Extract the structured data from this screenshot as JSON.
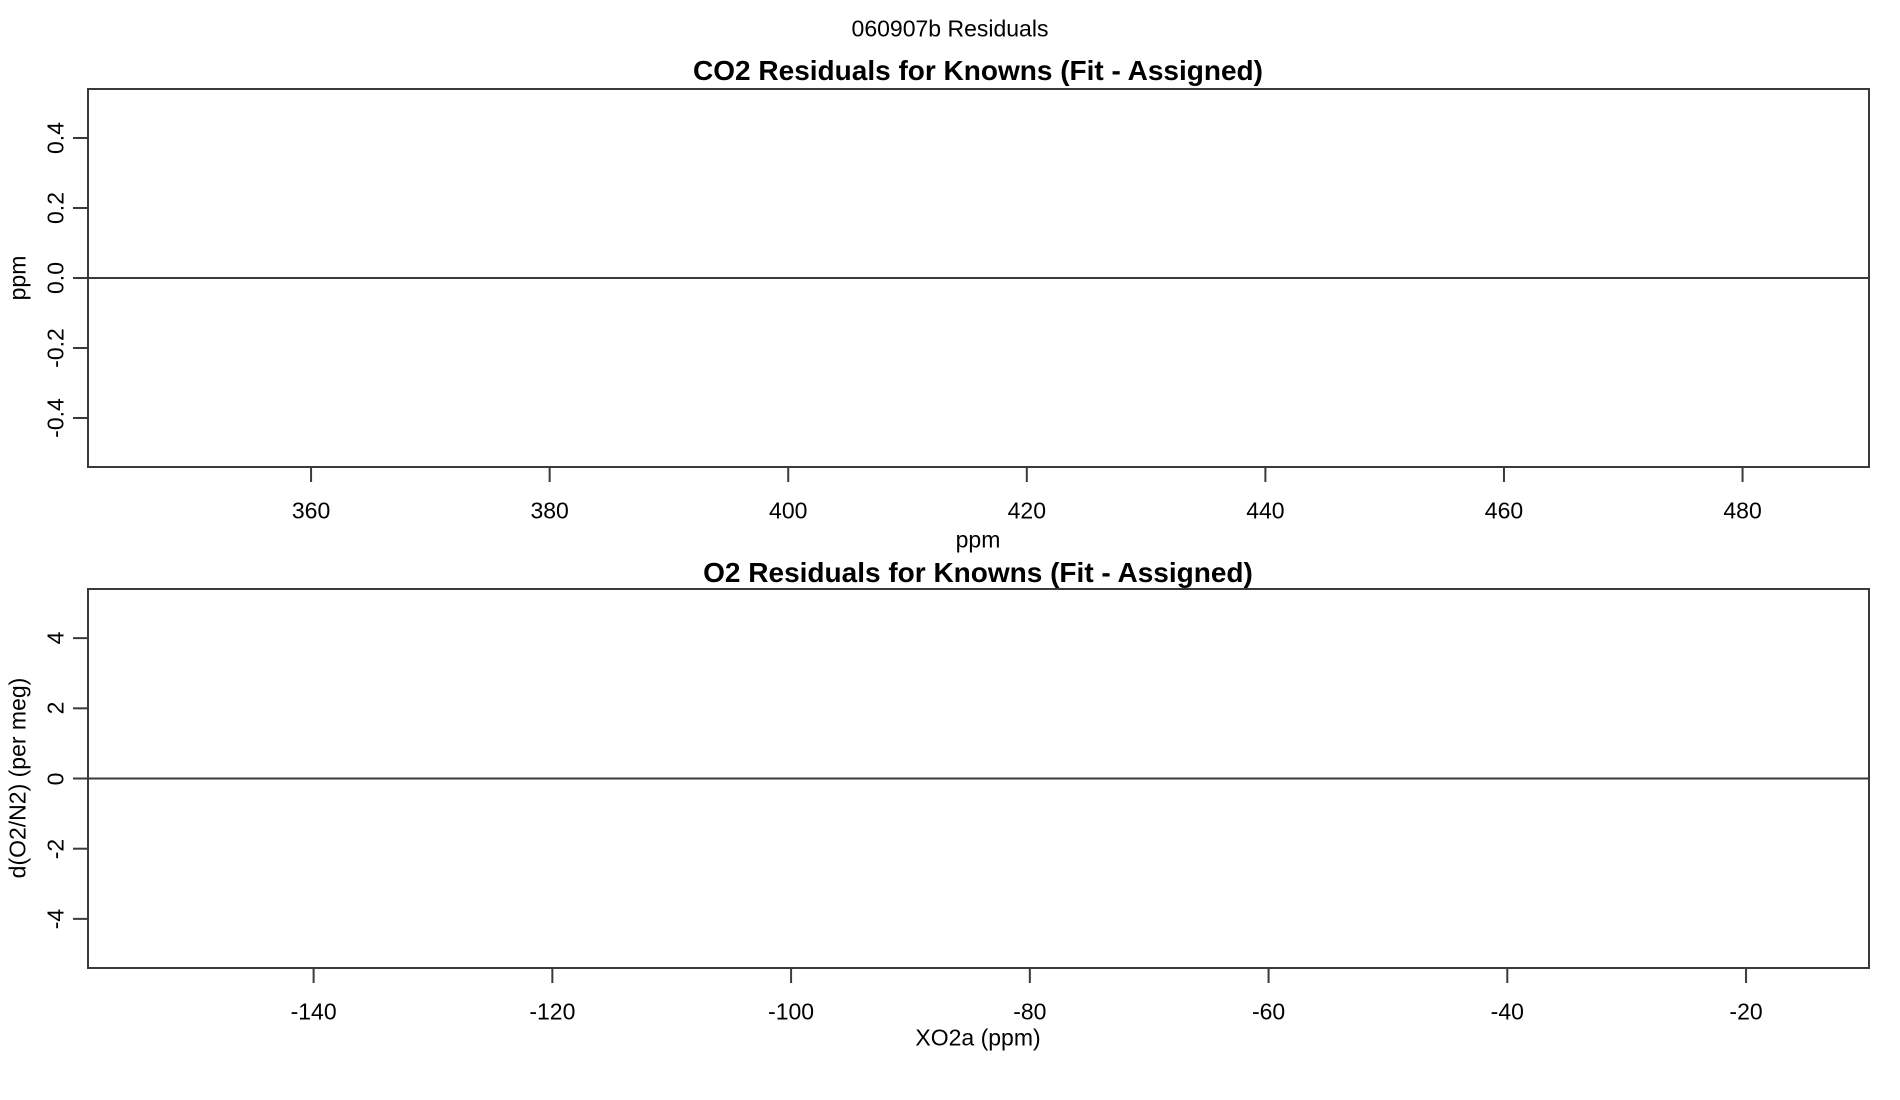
{
  "page": {
    "title": "060907b  Residuals",
    "background": "#ffffff",
    "line_color": "#3a3a3a",
    "text_color": "#000000"
  },
  "chart_data": [
    {
      "type": "scatter",
      "title": "CO2 Residuals for Knowns (Fit - Assigned)",
      "xlabel": "ppm",
      "ylabel": "ppm",
      "xlim": [
        341.3,
        490.6
      ],
      "ylim": [
        -0.54,
        0.54
      ],
      "x_ticks": [
        360,
        380,
        400,
        420,
        440,
        460,
        480
      ],
      "x_tick_labels": [
        "360",
        "380",
        "400",
        "420",
        "440",
        "460",
        "480"
      ],
      "y_ticks": [
        0.4,
        0.2,
        0.0,
        -0.2,
        -0.4
      ],
      "y_tick_labels": [
        "0.4",
        "0.2",
        "0.0",
        "-0.2",
        "-0.4"
      ],
      "reference_line_y": 0,
      "points": [],
      "grid": false,
      "legend": null
    },
    {
      "type": "scatter",
      "title": "O2 Residuals for Knowns (Fit - Assigned)",
      "xlabel": "XO2a (ppm)",
      "ylabel": "d(O2/N2) (per meg)",
      "xlim": [
        -158.9,
        -9.7
      ],
      "ylim": [
        -5.4,
        5.4
      ],
      "x_ticks": [
        -140,
        -120,
        -100,
        -80,
        -60,
        -40,
        -20
      ],
      "x_tick_labels": [
        "-140",
        "-120",
        "-100",
        "-80",
        "-60",
        "-40",
        "-20"
      ],
      "y_ticks": [
        4,
        2,
        0,
        -2,
        -4
      ],
      "y_tick_labels": [
        "4",
        "2",
        "0",
        "-2",
        "-4"
      ],
      "reference_line_y": 0,
      "points": [],
      "grid": false,
      "legend": null
    }
  ]
}
